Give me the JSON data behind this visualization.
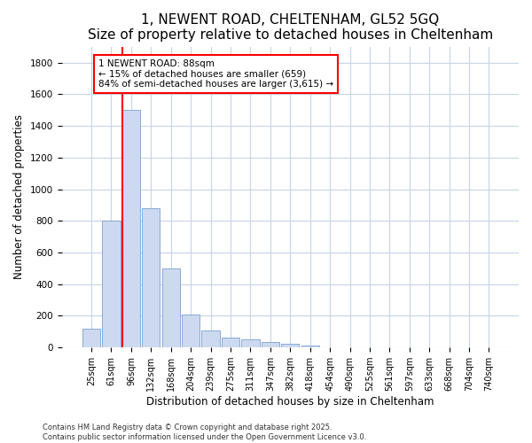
{
  "title_line1": "1, NEWENT ROAD, CHELTENHAM, GL52 5GQ",
  "title_line2": "Size of property relative to detached houses in Cheltenham",
  "xlabel": "Distribution of detached houses by size in Cheltenham",
  "ylabel": "Number of detached properties",
  "categories": [
    "25sqm",
    "61sqm",
    "96sqm",
    "132sqm",
    "168sqm",
    "204sqm",
    "239sqm",
    "275sqm",
    "311sqm",
    "347sqm",
    "382sqm",
    "418sqm",
    "454sqm",
    "490sqm",
    "525sqm",
    "561sqm",
    "597sqm",
    "633sqm",
    "668sqm",
    "704sqm",
    "740sqm"
  ],
  "values": [
    120,
    800,
    1500,
    880,
    500,
    210,
    110,
    65,
    50,
    35,
    25,
    15,
    0,
    0,
    0,
    0,
    0,
    0,
    0,
    0,
    0
  ],
  "bar_color": "#ccd9f0",
  "bar_edge_color": "#7aa0cc",
  "vline_x": 2.0,
  "vline_color": "red",
  "annotation_text": "1 NEWENT ROAD: 88sqm\n← 15% of detached houses are smaller (659)\n84% of semi-detached houses are larger (3,615) →",
  "annotation_box_color": "white",
  "annotation_box_edge": "red",
  "ylim": [
    0,
    1900
  ],
  "yticks": [
    0,
    200,
    400,
    600,
    800,
    1000,
    1200,
    1400,
    1600,
    1800
  ],
  "footnote": "Contains HM Land Registry data © Crown copyright and database right 2025.\nContains public sector information licensed under the Open Government Licence v3.0.",
  "bg_color": "#ffffff",
  "grid_color": "#c8d4e8",
  "title_fontsize": 11,
  "subtitle_fontsize": 9,
  "tick_fontsize": 7,
  "label_fontsize": 8.5,
  "footnote_fontsize": 6
}
